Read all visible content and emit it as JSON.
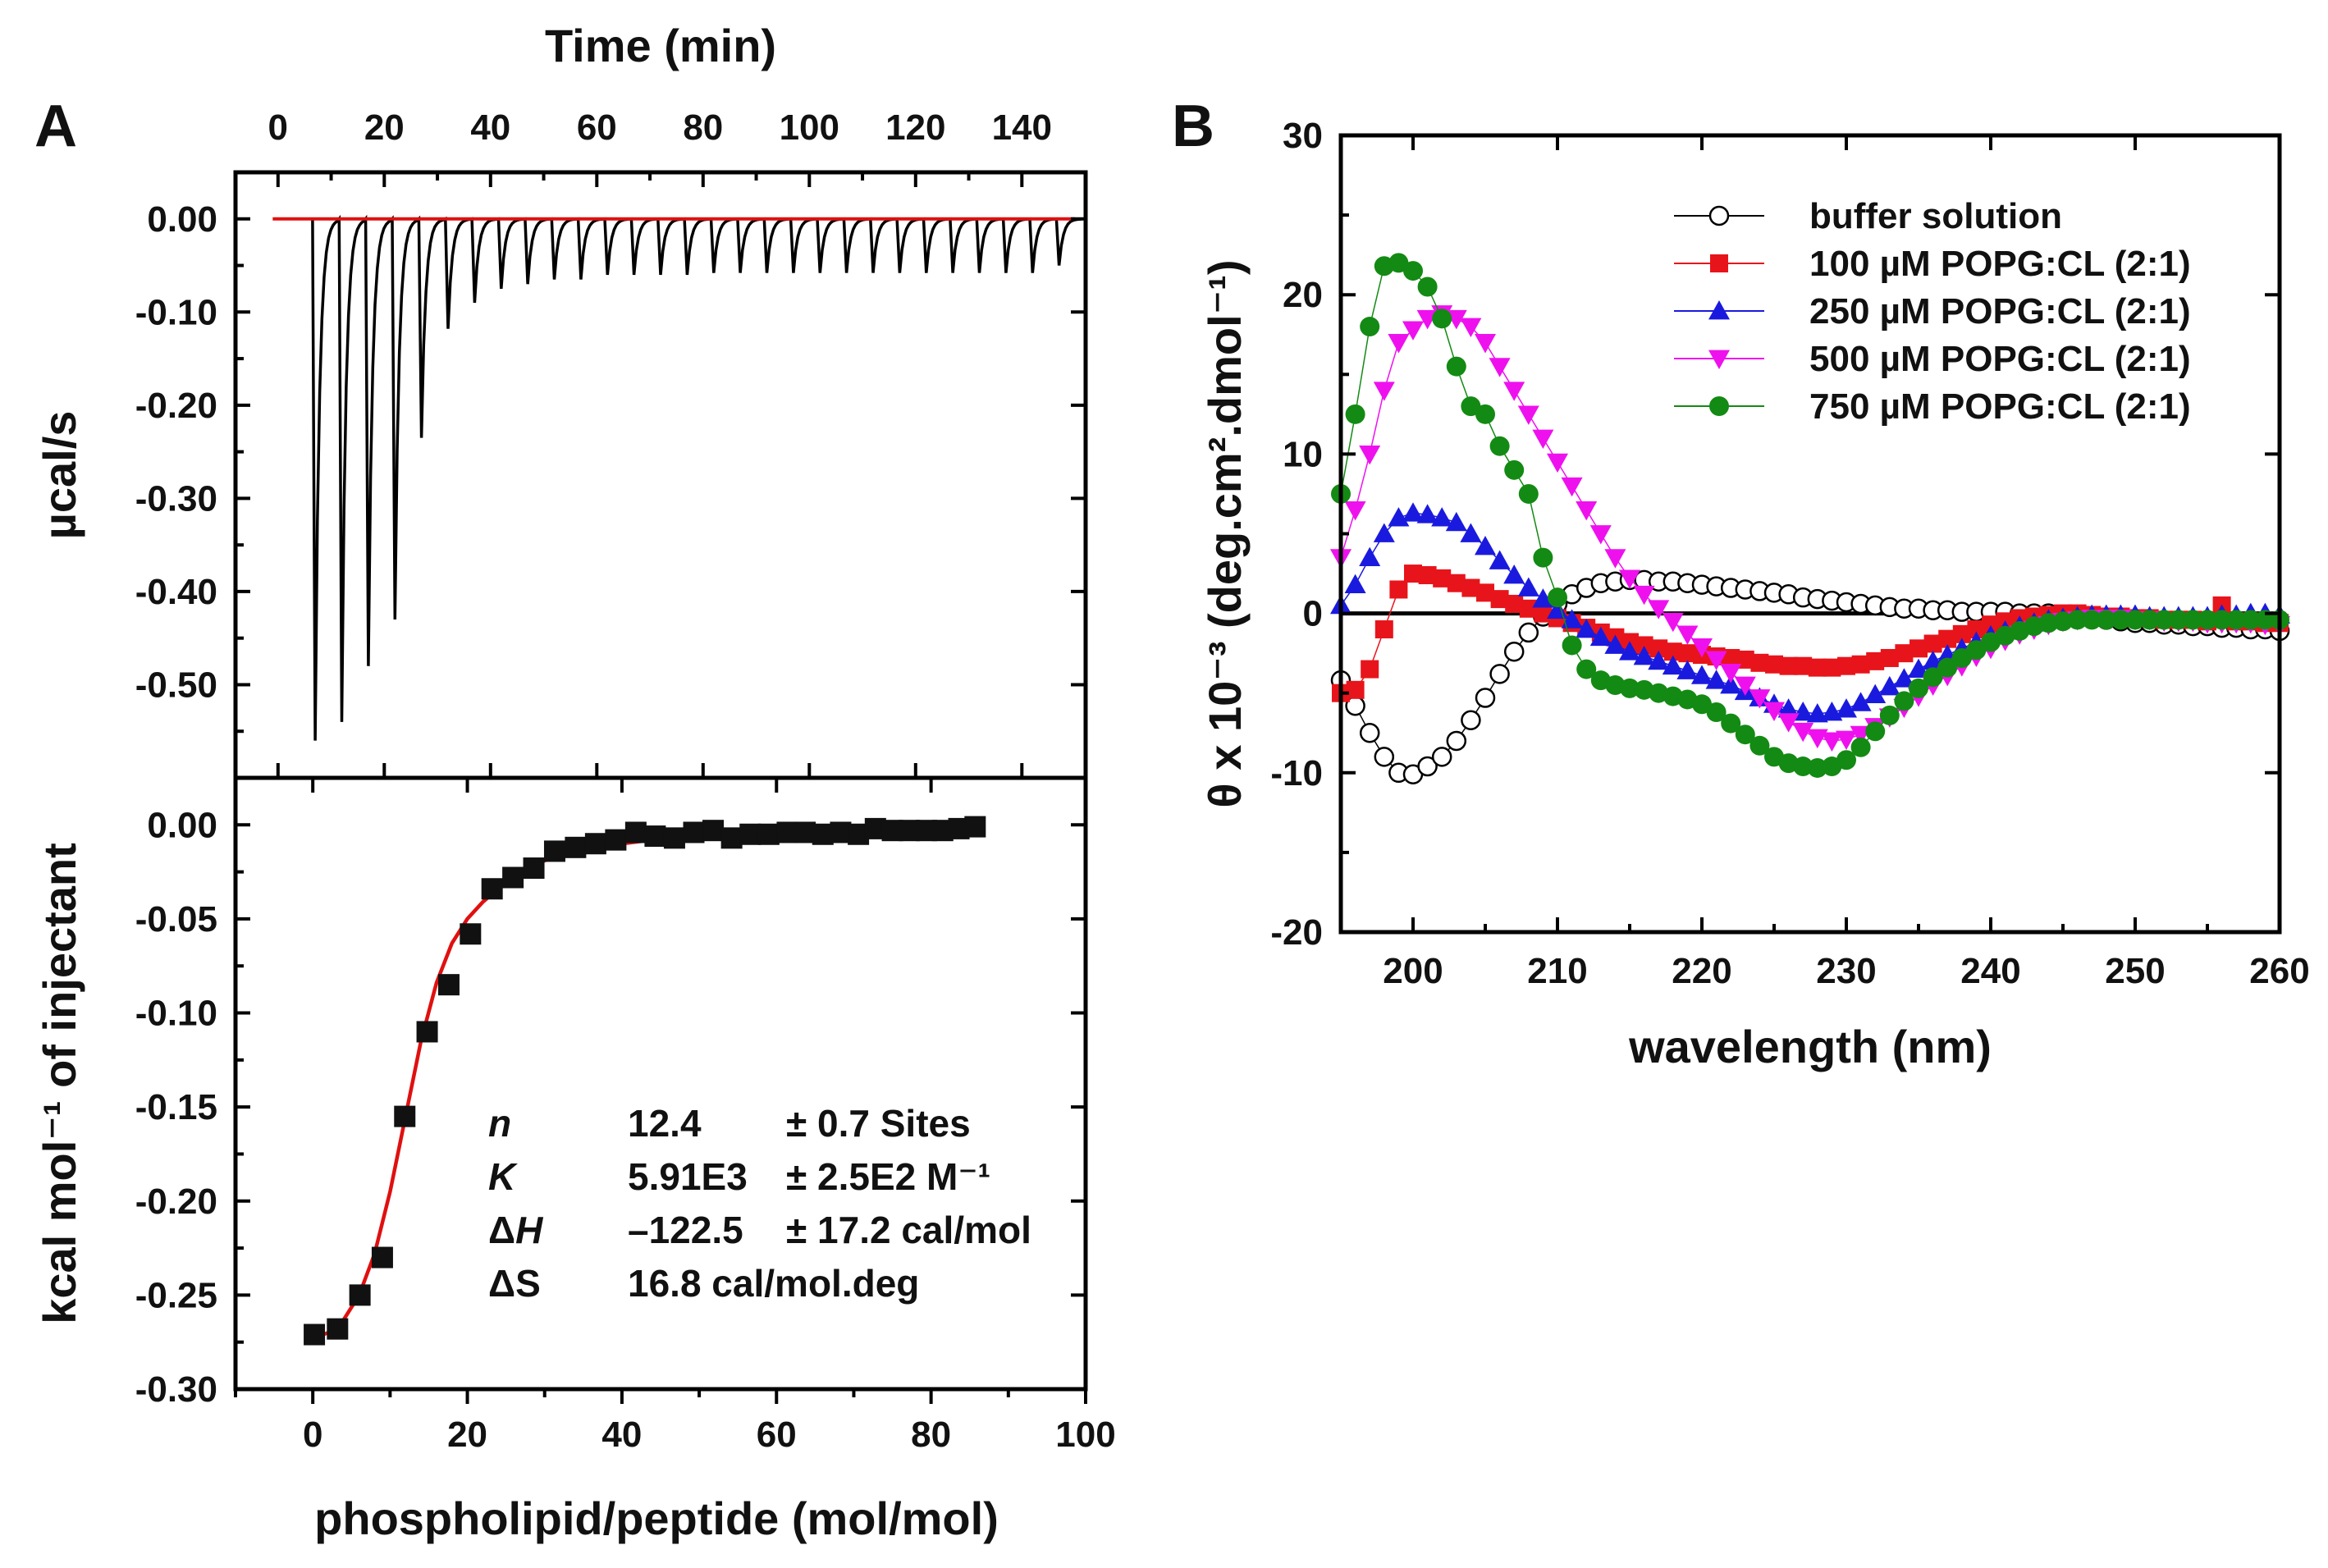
{
  "chart_data": [
    {
      "panel": "A",
      "type": "line",
      "subplot": "raw ITC heat flow",
      "xlabel": "Time (min)",
      "ylabel": "µcal/s",
      "xlim": [
        -8,
        152
      ],
      "ylim": [
        -0.6,
        0.05
      ],
      "xticks": [
        0,
        20,
        40,
        60,
        80,
        100,
        120,
        140
      ],
      "yticks": [
        0.0,
        -0.1,
        -0.2,
        -0.3,
        -0.4,
        -0.5
      ],
      "ytick_labels": [
        "0.00",
        "-0.10",
        "-0.20",
        "-0.30",
        "-0.40",
        "-0.50"
      ],
      "baseline_color": "#e01010",
      "trace_color": "#000000",
      "injections": {
        "times": [
          6.5,
          11.5,
          16.5,
          21.5,
          26.5,
          31.5,
          36.5,
          41.5,
          46.5,
          51.5,
          56.5,
          61.5,
          66.5,
          71.5,
          76.5,
          81.5,
          86.5,
          91.5,
          96.5,
          101.5,
          106.5,
          111.5,
          116.5,
          121.5,
          126.5,
          131.5,
          136.5,
          141.5,
          146.5
        ],
        "peak_heights": [
          -0.56,
          -0.54,
          -0.48,
          -0.43,
          -0.235,
          -0.118,
          -0.09,
          -0.075,
          -0.07,
          -0.065,
          -0.065,
          -0.06,
          -0.06,
          -0.06,
          -0.06,
          -0.058,
          -0.058,
          -0.058,
          -0.058,
          -0.058,
          -0.058,
          -0.058,
          -0.058,
          -0.058,
          -0.058,
          -0.058,
          -0.058,
          -0.058,
          -0.05
        ]
      }
    },
    {
      "panel": "A",
      "type": "scatter",
      "subplot": "integrated heats",
      "xlabel": "phospholipid/peptide (mol/mol)",
      "ylabel": "kcal mol⁻¹ of injectant",
      "xlim": [
        -10,
        100
      ],
      "ylim": [
        -0.3,
        0.025
      ],
      "xticks": [
        0,
        20,
        40,
        60,
        80,
        100
      ],
      "yticks": [
        0.0,
        -0.05,
        -0.1,
        -0.15,
        -0.2,
        -0.25,
        -0.3
      ],
      "ytick_labels": [
        "0.00",
        "-0.05",
        "-0.10",
        "-0.15",
        "-0.20",
        "-0.25",
        "-0.30"
      ],
      "x": [
        0.2,
        3.2,
        6.1,
        9.0,
        11.9,
        14.8,
        17.6,
        20.4,
        23.2,
        25.9,
        28.6,
        31.3,
        34.0,
        36.6,
        39.2,
        41.8,
        44.3,
        46.8,
        49.3,
        51.8,
        54.2,
        56.6,
        59.0,
        61.4,
        63.7,
        66.0,
        68.3,
        70.6,
        72.8,
        75.0,
        77.2,
        79.4,
        81.5,
        83.6,
        85.7
      ],
      "y": [
        -0.271,
        -0.268,
        -0.25,
        -0.23,
        -0.155,
        -0.11,
        -0.085,
        -0.058,
        -0.034,
        -0.028,
        -0.023,
        -0.014,
        -0.012,
        -0.01,
        -0.008,
        -0.004,
        -0.006,
        -0.007,
        -0.004,
        -0.003,
        -0.007,
        -0.005,
        -0.005,
        -0.004,
        -0.004,
        -0.005,
        -0.004,
        -0.005,
        -0.002,
        -0.003,
        -0.003,
        -0.003,
        -0.003,
        -0.002,
        -0.001
      ],
      "fit": {
        "color": "#e01010",
        "x": [
          0,
          2,
          4,
          6,
          8,
          10,
          12,
          14,
          16,
          18,
          20,
          22,
          24,
          26,
          28,
          30,
          34,
          38,
          42,
          46,
          50,
          55,
          60,
          65,
          70,
          75,
          80,
          86
        ],
        "y": [
          -0.273,
          -0.27,
          -0.263,
          -0.25,
          -0.228,
          -0.195,
          -0.155,
          -0.115,
          -0.084,
          -0.063,
          -0.05,
          -0.041,
          -0.034,
          -0.028,
          -0.023,
          -0.019,
          -0.014,
          -0.011,
          -0.009,
          -0.007,
          -0.006,
          -0.005,
          -0.004,
          -0.0035,
          -0.003,
          -0.0025,
          -0.002,
          -0.0015
        ]
      },
      "parameters": [
        {
          "name": "n",
          "italic": true,
          "value": "12.4",
          "error": "± 0.7 Sites"
        },
        {
          "name": "K",
          "italic": true,
          "value": "5.91E3",
          "error": "± 2.5E2 M⁻¹"
        },
        {
          "name_prefix": "Δ",
          "name": "H",
          "italic": true,
          "value": "–122.5",
          "error": "± 17.2 cal/mol"
        },
        {
          "name_prefix": "Δ",
          "name": "S",
          "italic": false,
          "value": "16.8 cal/mol.deg",
          "error": ""
        }
      ]
    },
    {
      "panel": "B",
      "type": "scatter",
      "title": "",
      "xlabel": "wavelength (nm)",
      "ylabel": "θ x 10⁻³ (deg.cm².dmol⁻¹)",
      "xlim": [
        195,
        260
      ],
      "ylim": [
        -20,
        30
      ],
      "xticks": [
        200,
        210,
        220,
        230,
        240,
        250,
        260
      ],
      "yticks": [
        -20,
        -10,
        0,
        10,
        20,
        30
      ],
      "legend_position": "top-right",
      "x": [
        195,
        196,
        197,
        198,
        199,
        200,
        201,
        202,
        203,
        204,
        205,
        206,
        207,
        208,
        209,
        210,
        211,
        212,
        213,
        214,
        215,
        216,
        217,
        218,
        219,
        220,
        221,
        222,
        223,
        224,
        225,
        226,
        227,
        228,
        229,
        230,
        231,
        232,
        233,
        234,
        235,
        236,
        237,
        238,
        239,
        240,
        241,
        242,
        243,
        244,
        245,
        246,
        247,
        248,
        249,
        250,
        251,
        252,
        253,
        254,
        255,
        256,
        257,
        258,
        259,
        260
      ],
      "series": [
        {
          "name": "buffer solution",
          "color": "#000000",
          "marker": "open-circle",
          "values": [
            -4.2,
            -5.8,
            -7.5,
            -9.0,
            -10.0,
            -10.1,
            -9.6,
            -9.0,
            -8.0,
            -6.7,
            -5.3,
            -3.8,
            -2.4,
            -1.2,
            -0.2,
            0.6,
            1.2,
            1.6,
            1.9,
            2.0,
            2.1,
            2.1,
            2.0,
            2.0,
            1.9,
            1.8,
            1.7,
            1.6,
            1.5,
            1.4,
            1.3,
            1.2,
            1.0,
            0.9,
            0.8,
            0.7,
            0.6,
            0.5,
            0.4,
            0.3,
            0.3,
            0.2,
            0.2,
            0.1,
            0.1,
            0.1,
            0.1,
            0.0,
            0.0,
            0.0,
            -0.1,
            -0.2,
            -0.3,
            -0.4,
            -0.5,
            -0.6,
            -0.6,
            -0.7,
            -0.7,
            -0.8,
            -0.8,
            -0.9,
            -0.9,
            -1.0,
            -1.0,
            -1.1
          ]
        },
        {
          "name": "100 µM POPG:CL (2:1)",
          "color": "#e8141b",
          "marker": "square",
          "values": [
            -5.0,
            -4.8,
            -3.5,
            -1.0,
            1.5,
            2.5,
            2.4,
            2.2,
            1.9,
            1.6,
            1.3,
            0.9,
            0.6,
            0.3,
            0.0,
            -0.3,
            -0.6,
            -0.9,
            -1.2,
            -1.5,
            -1.8,
            -2.0,
            -2.2,
            -2.4,
            -2.5,
            -2.6,
            -2.7,
            -2.8,
            -2.9,
            -3.1,
            -3.2,
            -3.3,
            -3.3,
            -3.4,
            -3.4,
            -3.3,
            -3.2,
            -3.0,
            -2.8,
            -2.5,
            -2.2,
            -1.9,
            -1.6,
            -1.3,
            -1.0,
            -0.7,
            -0.5,
            -0.3,
            -0.2,
            -0.1,
            0.0,
            0.0,
            -0.1,
            -0.2,
            -0.2,
            -0.3,
            -0.3,
            -0.4,
            -0.4,
            -0.4,
            -0.5,
            0.5,
            -0.5,
            -0.5,
            -0.6,
            -0.6
          ]
        },
        {
          "name": "250 µM POPG:CL (2:1)",
          "color": "#1a1adf",
          "marker": "triangle-up",
          "values": [
            0.5,
            1.8,
            3.5,
            5.0,
            6.0,
            6.3,
            6.2,
            6.0,
            5.7,
            5.0,
            4.2,
            3.3,
            2.4,
            1.6,
            0.9,
            0.2,
            -0.4,
            -1.0,
            -1.5,
            -2.0,
            -2.4,
            -2.7,
            -3.0,
            -3.3,
            -3.6,
            -3.9,
            -4.2,
            -4.5,
            -4.9,
            -5.3,
            -5.7,
            -6.0,
            -6.2,
            -6.3,
            -6.2,
            -6.0,
            -5.6,
            -5.1,
            -4.6,
            -4.1,
            -3.5,
            -3.0,
            -2.6,
            -2.2,
            -1.8,
            -1.4,
            -1.1,
            -0.8,
            -0.6,
            -0.4,
            -0.3,
            -0.2,
            -0.1,
            -0.1,
            -0.1,
            -0.1,
            -0.2,
            -0.2,
            -0.2,
            -0.2,
            -0.2,
            -0.1,
            -0.1,
            0.0,
            0.0,
            -0.1
          ]
        },
        {
          "name": "500 µM POPG:CL (2:1)",
          "color": "#ee11ee",
          "marker": "triangle-down",
          "values": [
            3.5,
            6.5,
            10.0,
            14.0,
            17.0,
            17.8,
            18.5,
            18.8,
            18.5,
            18.0,
            17.0,
            15.5,
            14.0,
            12.5,
            11.0,
            9.5,
            8.0,
            6.5,
            5.0,
            3.5,
            2.2,
            1.2,
            0.3,
            -0.5,
            -1.3,
            -2.1,
            -2.9,
            -3.7,
            -4.5,
            -5.3,
            -6.1,
            -6.8,
            -7.4,
            -7.8,
            -8.0,
            -7.9,
            -7.6,
            -7.1,
            -6.5,
            -5.9,
            -5.2,
            -4.5,
            -3.9,
            -3.3,
            -2.7,
            -2.2,
            -1.7,
            -1.3,
            -1.0,
            -0.7,
            -0.5,
            -0.4,
            -0.3,
            -0.3,
            -0.3,
            -0.4,
            -0.4,
            -0.5,
            -0.5,
            -0.5,
            -0.6,
            -0.6,
            -0.6,
            -0.6,
            -0.7,
            -0.7
          ]
        },
        {
          "name": "750 µM POPG:CL (2:1)",
          "color": "#138a13",
          "marker": "circle",
          "values": [
            7.5,
            12.5,
            18.0,
            21.8,
            22.0,
            21.5,
            20.5,
            18.5,
            15.5,
            13.0,
            12.5,
            10.5,
            9.0,
            7.5,
            3.5,
            1.0,
            -2.0,
            -3.5,
            -4.2,
            -4.5,
            -4.7,
            -4.8,
            -5.0,
            -5.2,
            -5.4,
            -5.7,
            -6.2,
            -6.9,
            -7.6,
            -8.3,
            -9.0,
            -9.4,
            -9.6,
            -9.7,
            -9.6,
            -9.2,
            -8.4,
            -7.4,
            -6.4,
            -5.5,
            -4.7,
            -4.0,
            -3.4,
            -2.8,
            -2.3,
            -1.8,
            -1.4,
            -1.1,
            -0.8,
            -0.6,
            -0.5,
            -0.4,
            -0.4,
            -0.4,
            -0.4,
            -0.4,
            -0.4,
            -0.4,
            -0.4,
            -0.4,
            -0.4,
            -0.4,
            -0.4,
            -0.4,
            -0.4,
            -0.4
          ]
        }
      ]
    }
  ],
  "labels": {
    "panel_a": "A",
    "panel_b": "B"
  }
}
